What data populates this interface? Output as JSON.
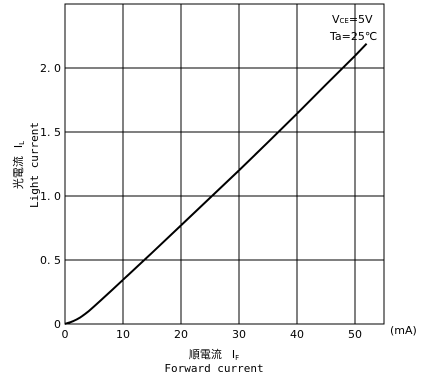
{
  "chart_data": {
    "type": "line",
    "x_label_jp": "順電流",
    "x_label_symbol": "I",
    "x_label_symbol_sub": "F",
    "x_label_en": "Forward current",
    "y_label_jp": "光電流",
    "y_label_symbol": "I",
    "y_label_symbol_sub": "L",
    "y_label_en": "Light current",
    "x_unit": "(mA)",
    "xlim": [
      0,
      55
    ],
    "ylim": [
      0,
      2.5
    ],
    "x_ticks": [
      0,
      10,
      20,
      30,
      40,
      50
    ],
    "x_tick_labels": [
      "0",
      "10",
      "20",
      "30",
      "40",
      "50"
    ],
    "y_ticks": [
      0,
      0.5,
      1.0,
      1.5,
      2.0
    ],
    "y_tick_labels": [
      "0",
      "0. 5",
      "1. 0",
      "1. 5",
      "2. 0"
    ],
    "grid": true,
    "conditions": {
      "vce_prefix": "V",
      "vce_sub": "CE",
      "vce_value": "=5V",
      "ta": "Ta=25℃"
    },
    "series": [
      {
        "x": [
          0,
          0.5,
          1,
          1.5,
          2,
          2.5,
          3,
          3.5,
          4,
          5,
          6,
          8,
          10,
          15,
          20,
          25,
          30,
          35,
          40,
          45,
          50,
          52
        ],
        "y": [
          0,
          0.008,
          0.015,
          0.024,
          0.035,
          0.048,
          0.063,
          0.08,
          0.097,
          0.137,
          0.178,
          0.261,
          0.345,
          0.556,
          0.77,
          0.985,
          1.2,
          1.42,
          1.643,
          1.87,
          2.095,
          2.19
        ]
      }
    ]
  }
}
